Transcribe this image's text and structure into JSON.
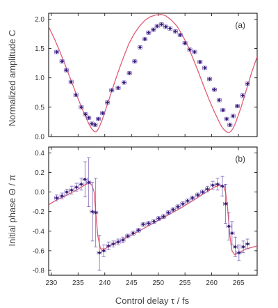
{
  "chart_data": [
    {
      "type": "scatter",
      "panel_label": "(a)",
      "xlabel": "Control delay τ / fs",
      "ylabel": "Normalized amplitude C",
      "xlim": [
        229.5,
        268.5
      ],
      "ylim": [
        0,
        2.1
      ],
      "xticks": [
        "230",
        "235",
        "240",
        "245",
        "250",
        "255",
        "260",
        "265"
      ],
      "xtick_values": [
        230,
        235,
        240,
        245,
        250,
        255,
        260,
        265
      ],
      "yticks": [
        "0.0",
        "0.5",
        "1.0",
        "1.5",
        "2.0"
      ],
      "ytick_values": [
        0,
        0.5,
        1.0,
        1.5,
        2.0
      ],
      "colors": {
        "points": "#3b1f78",
        "errorbars": "#7a63b8",
        "fit": "#e05a75"
      },
      "series": [
        {
          "kind": "points",
          "x": [
            231.0,
            232.0,
            232.8,
            233.7,
            234.6,
            235.6,
            236.4,
            237.0,
            237.6,
            238.2,
            238.8,
            239.6,
            240.5,
            241.3,
            242.5,
            243.6,
            244.6,
            245.6,
            246.6,
            247.5,
            248.2,
            249.1,
            249.8,
            250.6,
            251.4,
            252.2,
            253.2,
            254.1,
            255.0,
            255.9,
            256.8,
            257.8,
            258.7,
            259.6,
            260.5,
            261.4,
            262.1,
            262.8,
            263.4,
            264.0,
            264.8,
            265.8,
            266.7
          ],
          "y": [
            1.44,
            1.28,
            1.13,
            0.93,
            0.71,
            0.5,
            0.38,
            0.32,
            0.22,
            0.2,
            0.3,
            0.4,
            0.58,
            0.79,
            0.83,
            0.92,
            1.08,
            1.28,
            1.52,
            1.66,
            1.77,
            1.82,
            1.88,
            1.91,
            1.87,
            1.84,
            1.79,
            1.73,
            1.59,
            1.48,
            1.44,
            1.27,
            1.17,
            0.98,
            0.8,
            0.62,
            0.45,
            0.3,
            0.2,
            0.35,
            0.52,
            0.7,
            0.9
          ],
          "yerr": [
            0.03,
            0.03,
            0.03,
            0.03,
            0.03,
            0.03,
            0.03,
            0.03,
            0.03,
            0.03,
            0.03,
            0.03,
            0.03,
            0.03,
            0.03,
            0.03,
            0.03,
            0.03,
            0.03,
            0.03,
            0.03,
            0.03,
            0.03,
            0.03,
            0.03,
            0.03,
            0.03,
            0.03,
            0.03,
            0.03,
            0.03,
            0.03,
            0.03,
            0.03,
            0.03,
            0.03,
            0.03,
            0.03,
            0.03,
            0.03,
            0.03,
            0.03,
            0.03
          ],
          "xerr": 0.4
        },
        {
          "kind": "fit",
          "x": [
            229.5,
            230.5,
            231.5,
            232.5,
            233.5,
            234.5,
            235.5,
            236.5,
            237.0,
            237.5,
            238.0,
            238.3,
            238.6,
            239.0,
            239.5,
            240.5,
            241.5,
            242.5,
            243.5,
            244.5,
            245.5,
            246.5,
            247.5,
            248.5,
            249.5,
            250.5,
            251.0,
            251.5,
            252.5,
            253.5,
            254.5,
            255.5,
            256.5,
            257.5,
            258.5,
            259.5,
            260.5,
            261.5,
            262.0,
            262.5,
            263.0,
            263.3,
            263.6,
            264.0,
            264.5,
            265.5,
            266.5,
            267.5,
            268.5
          ],
          "y": [
            1.87,
            1.68,
            1.47,
            1.24,
            1.0,
            0.76,
            0.53,
            0.32,
            0.22,
            0.14,
            0.09,
            0.08,
            0.1,
            0.17,
            0.28,
            0.55,
            0.83,
            1.1,
            1.35,
            1.58,
            1.75,
            1.88,
            1.98,
            2.04,
            2.07,
            2.08,
            2.07,
            2.05,
            1.98,
            1.88,
            1.73,
            1.55,
            1.33,
            1.1,
            0.86,
            0.63,
            0.42,
            0.23,
            0.15,
            0.1,
            0.07,
            0.07,
            0.09,
            0.14,
            0.24,
            0.5,
            0.8,
            1.1,
            1.36
          ]
        }
      ]
    },
    {
      "type": "scatter",
      "panel_label": "(b)",
      "xlabel": "Control delay τ / fs",
      "ylabel": "Initial phase Θ / π",
      "xlim": [
        229.5,
        268.5
      ],
      "ylim": [
        -0.85,
        0.46
      ],
      "xticks": [
        "230",
        "235",
        "240",
        "245",
        "250",
        "255",
        "260",
        "265"
      ],
      "xtick_values": [
        230,
        235,
        240,
        245,
        250,
        255,
        260,
        265
      ],
      "yticks": [
        "-0.8",
        "-0.6",
        "-0.4",
        "-0.2",
        "0.0",
        "0.2",
        "0.4"
      ],
      "ytick_values": [
        -0.8,
        -0.6,
        -0.4,
        -0.2,
        0.0,
        0.2,
        0.4
      ],
      "colors": {
        "points": "#3b1f78",
        "errorbars": "#7a63b8",
        "fit": "#e05a75"
      },
      "series": [
        {
          "kind": "points",
          "x": [
            231.0,
            232.0,
            232.9,
            233.8,
            234.7,
            235.6,
            236.3,
            237.0,
            237.7,
            238.3,
            239.0,
            239.8,
            240.7,
            241.6,
            242.5,
            243.4,
            244.3,
            245.3,
            246.3,
            247.2,
            248.2,
            249.2,
            250.1,
            251.0,
            251.9,
            252.8,
            253.7,
            254.6,
            255.5,
            256.4,
            257.4,
            258.3,
            259.2,
            260.2,
            261.1,
            262.0,
            262.6,
            263.2,
            263.8,
            264.4,
            265.1,
            265.9,
            266.7
          ],
          "y": [
            -0.06,
            -0.04,
            0.0,
            0.02,
            0.05,
            0.08,
            0.13,
            0.1,
            -0.2,
            -0.21,
            -0.62,
            -0.6,
            -0.55,
            -0.53,
            -0.51,
            -0.49,
            -0.45,
            -0.42,
            -0.39,
            -0.33,
            -0.32,
            -0.3,
            -0.27,
            -0.25,
            -0.21,
            -0.18,
            -0.15,
            -0.12,
            -0.09,
            -0.06,
            -0.03,
            0.0,
            0.03,
            0.07,
            0.08,
            0.06,
            -0.12,
            -0.35,
            -0.42,
            -0.56,
            -0.62,
            -0.56,
            -0.53
          ],
          "yerr": [
            0.03,
            0.03,
            0.03,
            0.04,
            0.04,
            0.06,
            0.18,
            0.25,
            0.3,
            0.35,
            0.18,
            0.06,
            0.04,
            0.03,
            0.03,
            0.03,
            0.02,
            0.02,
            0.02,
            0.02,
            0.02,
            0.02,
            0.02,
            0.02,
            0.02,
            0.02,
            0.02,
            0.02,
            0.02,
            0.02,
            0.02,
            0.02,
            0.03,
            0.04,
            0.06,
            0.1,
            0.2,
            0.14,
            0.12,
            0.1,
            0.08,
            0.06,
            0.05
          ],
          "xerr": 0.4
        },
        {
          "kind": "fit",
          "x": [
            229.5,
            231.0,
            233.0,
            235.0,
            236.5,
            237.2,
            237.6,
            238.0,
            238.3,
            238.7,
            239.2,
            240.0,
            242.0,
            245.0,
            248.0,
            251.0,
            254.0,
            257.0,
            259.0,
            260.5,
            261.5,
            262.2,
            262.6,
            263.0,
            263.4,
            263.8,
            264.3,
            265.0,
            266.5,
            268.5
          ],
          "y": [
            -0.13,
            -0.08,
            -0.03,
            0.03,
            0.08,
            0.09,
            0.07,
            0.0,
            -0.2,
            -0.45,
            -0.58,
            -0.58,
            -0.52,
            -0.44,
            -0.35,
            -0.26,
            -0.17,
            -0.07,
            0.0,
            0.05,
            0.07,
            0.06,
            0.0,
            -0.18,
            -0.45,
            -0.6,
            -0.64,
            -0.62,
            -0.58,
            -0.55
          ]
        }
      ]
    }
  ]
}
